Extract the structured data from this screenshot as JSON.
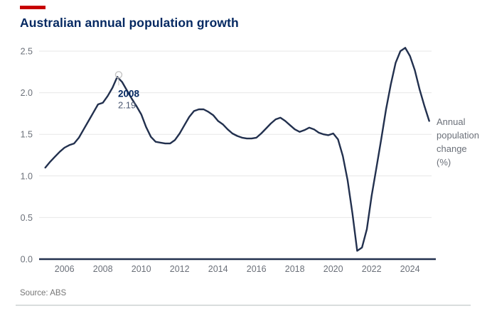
{
  "title": "Australian annual population growth",
  "source": "Source: ABS",
  "colors": {
    "accent_red": "#c70000",
    "title_navy": "#052962",
    "line_navy": "#22304e",
    "tick_gray": "#6b7079",
    "grid_gray": "#e7e7e7",
    "marker_gray": "#c4c4c4",
    "annotation_value_gray": "#4d5a73"
  },
  "chart_data": {
    "type": "line",
    "title": "Australian annual population growth",
    "xlabel": "",
    "ylabel": "Annual population change (%)",
    "right_label_lines": [
      "Annual",
      "population",
      "change",
      "(%)"
    ],
    "x_ticks": [
      2006,
      2008,
      2010,
      2012,
      2014,
      2016,
      2018,
      2020,
      2022,
      2024
    ],
    "y_ticks": [
      "0.0",
      "0.5",
      "1.0",
      "1.5",
      "2.0",
      "2.5"
    ],
    "xlim": [
      2004.9,
      2025.2
    ],
    "ylim": [
      0,
      2.5
    ],
    "grid": "horizontal",
    "legend_position": "right-of-line-end",
    "annotation": {
      "x": 2008.75,
      "y": 2.19,
      "label_year": "2008",
      "label_value": "2.19"
    },
    "series": [
      {
        "name": "Annual population change (%)",
        "points": [
          [
            2005.0,
            1.1
          ],
          [
            2005.25,
            1.17
          ],
          [
            2005.5,
            1.23
          ],
          [
            2005.75,
            1.29
          ],
          [
            2006.0,
            1.34
          ],
          [
            2006.25,
            1.37
          ],
          [
            2006.5,
            1.39
          ],
          [
            2006.75,
            1.46
          ],
          [
            2007.0,
            1.56
          ],
          [
            2007.25,
            1.66
          ],
          [
            2007.5,
            1.76
          ],
          [
            2007.75,
            1.86
          ],
          [
            2008.0,
            1.88
          ],
          [
            2008.25,
            1.96
          ],
          [
            2008.5,
            2.06
          ],
          [
            2008.75,
            2.19
          ],
          [
            2009.0,
            2.13
          ],
          [
            2009.25,
            2.03
          ],
          [
            2009.5,
            1.93
          ],
          [
            2009.75,
            1.84
          ],
          [
            2010.0,
            1.74
          ],
          [
            2010.25,
            1.59
          ],
          [
            2010.5,
            1.47
          ],
          [
            2010.75,
            1.41
          ],
          [
            2011.0,
            1.4
          ],
          [
            2011.25,
            1.39
          ],
          [
            2011.5,
            1.39
          ],
          [
            2011.75,
            1.43
          ],
          [
            2012.0,
            1.51
          ],
          [
            2012.25,
            1.61
          ],
          [
            2012.5,
            1.71
          ],
          [
            2012.75,
            1.78
          ],
          [
            2013.0,
            1.8
          ],
          [
            2013.25,
            1.8
          ],
          [
            2013.5,
            1.77
          ],
          [
            2013.75,
            1.73
          ],
          [
            2014.0,
            1.66
          ],
          [
            2014.25,
            1.62
          ],
          [
            2014.5,
            1.56
          ],
          [
            2014.75,
            1.51
          ],
          [
            2015.0,
            1.48
          ],
          [
            2015.25,
            1.46
          ],
          [
            2015.5,
            1.45
          ],
          [
            2015.75,
            1.45
          ],
          [
            2016.0,
            1.46
          ],
          [
            2016.25,
            1.51
          ],
          [
            2016.5,
            1.57
          ],
          [
            2016.75,
            1.63
          ],
          [
            2017.0,
            1.68
          ],
          [
            2017.25,
            1.7
          ],
          [
            2017.5,
            1.66
          ],
          [
            2017.75,
            1.61
          ],
          [
            2018.0,
            1.56
          ],
          [
            2018.25,
            1.53
          ],
          [
            2018.5,
            1.55
          ],
          [
            2018.75,
            1.58
          ],
          [
            2019.0,
            1.56
          ],
          [
            2019.25,
            1.52
          ],
          [
            2019.5,
            1.5
          ],
          [
            2019.75,
            1.49
          ],
          [
            2020.0,
            1.51
          ],
          [
            2020.25,
            1.44
          ],
          [
            2020.5,
            1.24
          ],
          [
            2020.75,
            0.95
          ],
          [
            2021.0,
            0.55
          ],
          [
            2021.25,
            0.1
          ],
          [
            2021.5,
            0.14
          ],
          [
            2021.75,
            0.36
          ],
          [
            2022.0,
            0.76
          ],
          [
            2022.25,
            1.1
          ],
          [
            2022.5,
            1.44
          ],
          [
            2022.75,
            1.8
          ],
          [
            2023.0,
            2.1
          ],
          [
            2023.25,
            2.36
          ],
          [
            2023.5,
            2.5
          ],
          [
            2023.75,
            2.54
          ],
          [
            2024.0,
            2.44
          ],
          [
            2024.25,
            2.27
          ],
          [
            2024.5,
            2.04
          ],
          [
            2024.75,
            1.84
          ],
          [
            2025.0,
            1.66
          ]
        ]
      }
    ]
  }
}
